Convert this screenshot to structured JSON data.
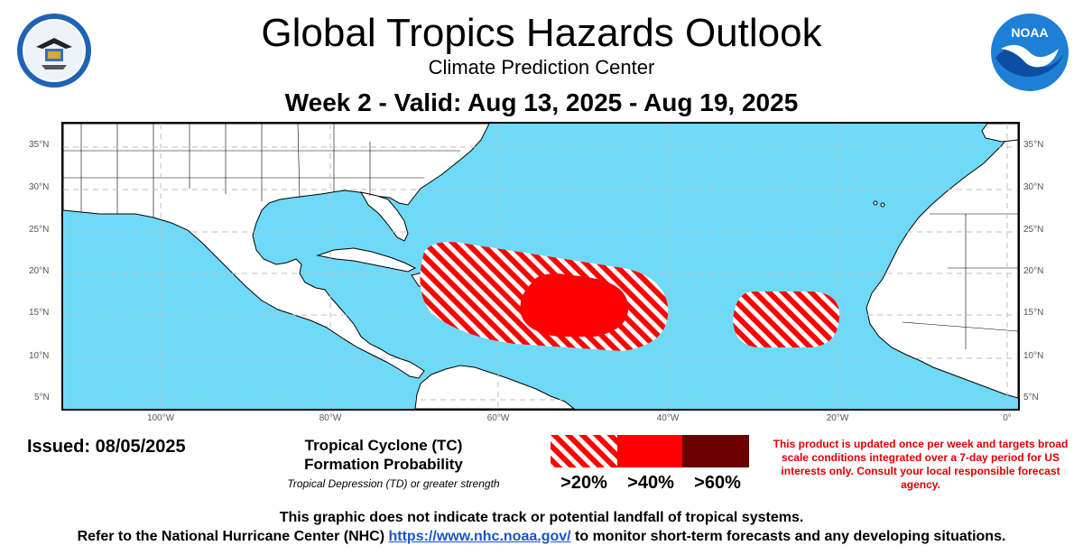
{
  "header": {
    "title": "Global Tropics Hazards Outlook",
    "subtitle": "Climate Prediction Center",
    "valid": "Week 2 - Valid: Aug 13, 2025 - Aug 19, 2025"
  },
  "logos": {
    "left": "department-of-commerce-seal",
    "right": "noaa-logo",
    "noaa_text": "NOAA"
  },
  "map": {
    "ocean_color": "#6fd9f8",
    "land_color": "#ffffff",
    "lat_labels": [
      "35°N",
      "30°N",
      "25°N",
      "20°N",
      "15°N",
      "10°N",
      "5°N"
    ],
    "lon_labels": [
      "100°W",
      "80°W",
      "60°W",
      "40°W",
      "20°W",
      "0°"
    ],
    "hazard_areas": [
      {
        "name": "central-atlantic-main",
        "probability": ">20%"
      },
      {
        "name": "central-atlantic-core",
        "probability": ">40%"
      },
      {
        "name": "eastern-atlantic",
        "probability": ">20%"
      }
    ]
  },
  "issued": "Issued: 08/05/2025",
  "legend": {
    "title_line1": "Tropical Cyclone (TC)",
    "title_line2": "Formation Probability",
    "note": "Tropical Depression (TD) or greater strength",
    "labels": [
      ">20%",
      ">40%",
      ">60%"
    ],
    "colors": [
      "#ff0000",
      "#ff0000",
      "#6b0000"
    ]
  },
  "disclaimer": "This product is updated once per week and targets broad scale conditions integrated over a 7-day period for US interests only. Consult your local responsible forecast agency.",
  "footer": {
    "line1": "This graphic does not indicate track or potential landfall of tropical systems.",
    "line2_pre": "Refer to the National Hurricane Center (NHC) ",
    "link": "https://www.nhc.noaa.gov/",
    "line2_post": " to monitor short-term forecasts and any developing situations."
  }
}
